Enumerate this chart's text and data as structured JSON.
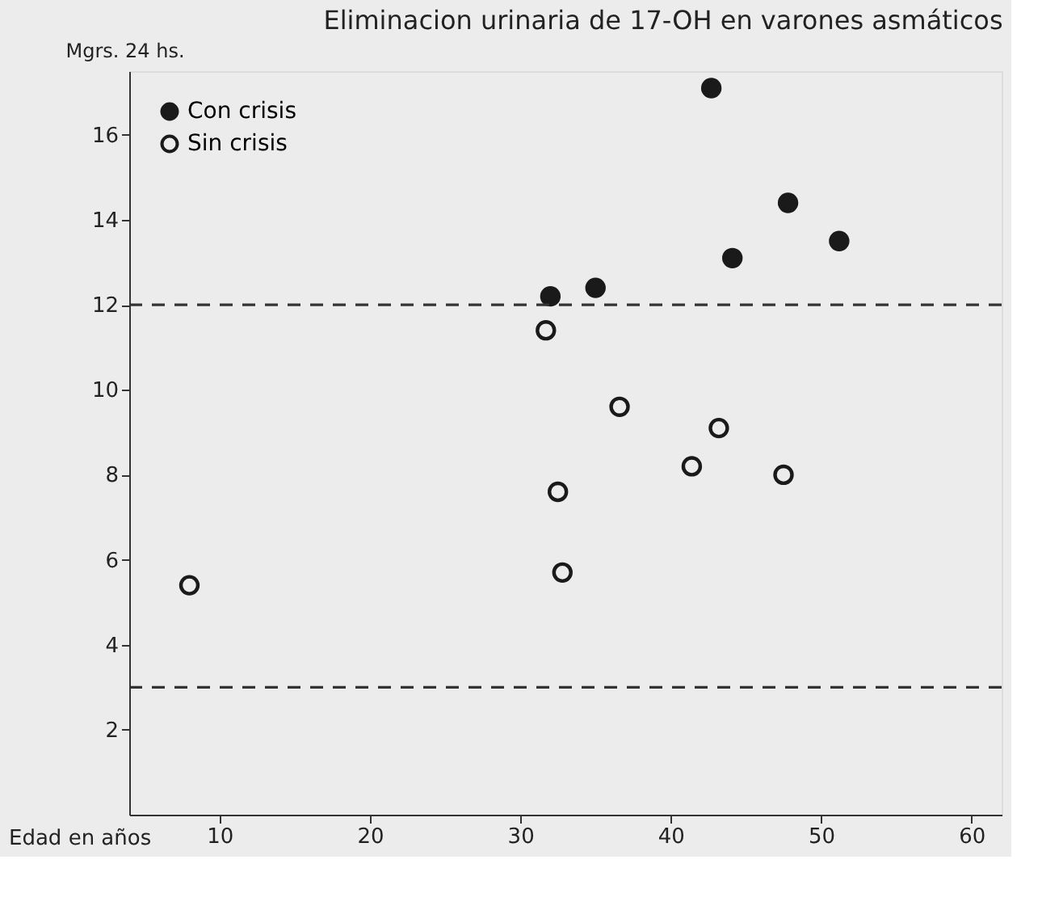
{
  "chart_data": {
    "type": "scatter",
    "title": "Eliminacion urinaria de 17-OH en varones asmáticos",
    "xlabel": "Edad en años",
    "ylabel": "Mgrs. 24 hs.",
    "series": [
      {
        "name": "Con crisis",
        "color": "#1a1a1a",
        "x": [
          32.0,
          35.0,
          42.7,
          47.8,
          44.1,
          51.2
        ],
        "values": [
          12.2,
          12.4,
          17.1,
          14.4,
          13.1,
          13.5
        ]
      },
      {
        "name": "Sin crisis",
        "color": "#1a1a1a",
        "x": [
          8.0,
          31.7,
          36.6,
          43.2,
          41.4,
          47.5,
          32.5,
          32.8
        ],
        "values": [
          5.4,
          11.4,
          9.6,
          9.1,
          8.2,
          8.0,
          7.6,
          5.7
        ]
      }
    ],
    "xlim": [
      4,
      62
    ],
    "xticks": [
      10,
      20,
      30,
      40,
      50,
      60
    ],
    "ylim": [
      0,
      17.5
    ],
    "yticks": [
      2,
      4,
      6,
      8,
      10,
      12,
      14,
      16
    ],
    "ref_lines": [
      {
        "axis": "y",
        "value": 12,
        "line_style": "dashed"
      },
      {
        "axis": "y",
        "value": 3,
        "line_style": "dashed"
      }
    ],
    "marker": "circle",
    "grid": false,
    "legend": "top left"
  }
}
